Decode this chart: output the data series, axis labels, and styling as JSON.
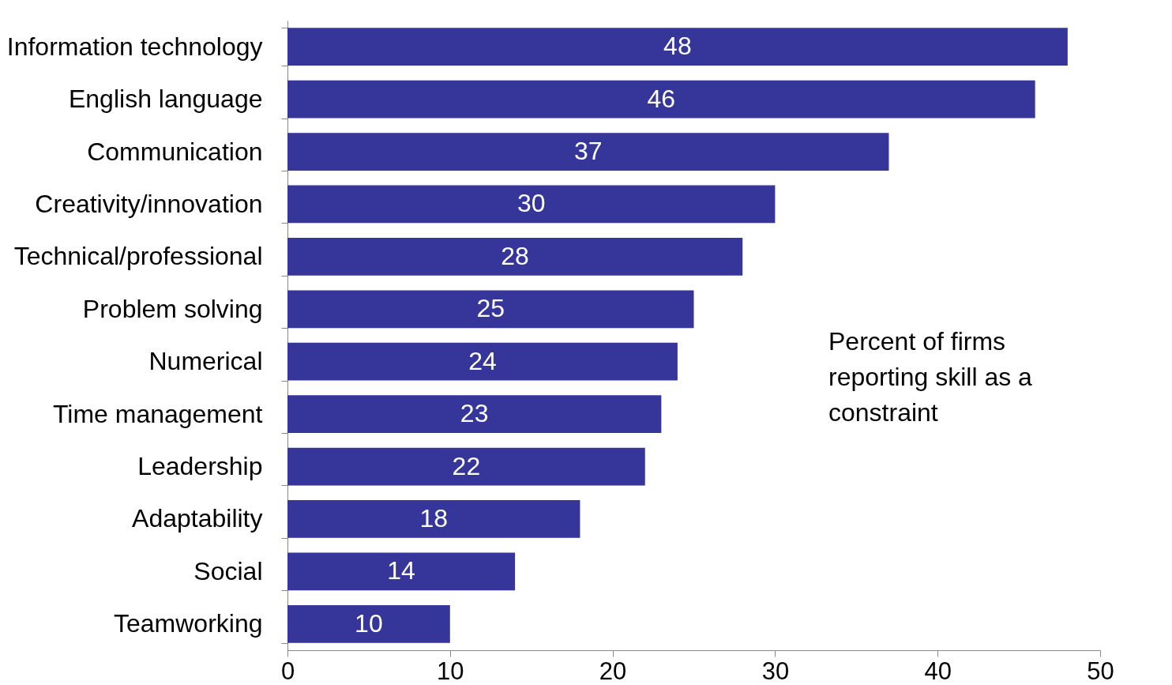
{
  "chart_data": {
    "type": "bar",
    "orientation": "horizontal",
    "categories": [
      "Information technology",
      "English language",
      "Communication",
      "Creativity/innovation",
      "Technical/professional",
      "Problem solving",
      "Numerical",
      "Time management",
      "Leadership",
      "Adaptability",
      "Social",
      "Teamworking"
    ],
    "values": [
      48,
      46,
      37,
      30,
      28,
      25,
      24,
      23,
      22,
      18,
      14,
      10
    ],
    "color": "#35359a",
    "data_labels": true,
    "xlim": [
      0,
      50
    ],
    "xticks": [
      0,
      10,
      20,
      30,
      40,
      50
    ],
    "grid": false,
    "annotations": [
      "Percent of firms reporting skill as a constraint"
    ]
  }
}
